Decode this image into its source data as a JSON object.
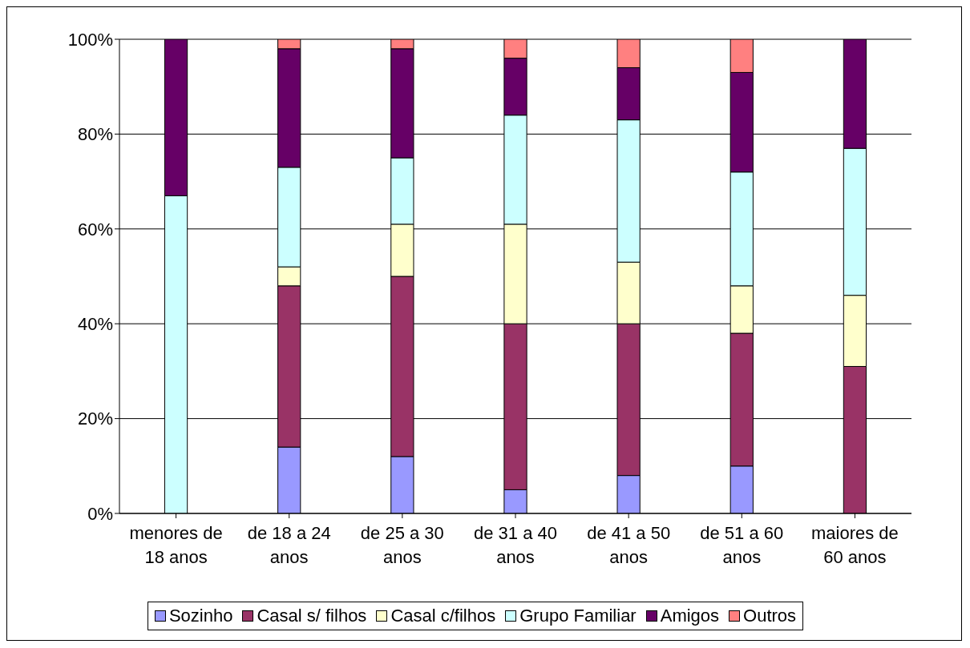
{
  "chart_data": {
    "type": "bar",
    "stacked": true,
    "categories": [
      "menores de 18 anos",
      "de 18 a 24 anos",
      "de 25 a 30 anos",
      "de 31 a 40 anos",
      "de 41 a 50 anos",
      "de 51 a 60 anos",
      "maiores de 60 anos"
    ],
    "series": [
      {
        "name": "Sozinho",
        "color": "#9999ff",
        "values": [
          0,
          14,
          12,
          5,
          8,
          10,
          0
        ]
      },
      {
        "name": "Casal s/ filhos",
        "color": "#993366",
        "values": [
          0,
          34,
          38,
          35,
          32,
          28,
          31
        ]
      },
      {
        "name": "Casal c/filhos",
        "color": "#ffffcc",
        "values": [
          0,
          4,
          11,
          21,
          13,
          10,
          15
        ]
      },
      {
        "name": "Grupo Familiar",
        "color": "#ccffff",
        "values": [
          67,
          21,
          14,
          23,
          30,
          24,
          31
        ]
      },
      {
        "name": "Amigos",
        "color": "#660066",
        "values": [
          33,
          25,
          23,
          12,
          11,
          21,
          23
        ]
      },
      {
        "name": "Outros",
        "color": "#ff8080",
        "values": [
          0,
          2,
          2,
          4,
          6,
          7,
          0
        ]
      }
    ],
    "ylim": [
      0,
      100
    ],
    "yticks": [
      {
        "value": 0,
        "label": "0%"
      },
      {
        "value": 20,
        "label": "20%"
      },
      {
        "value": 40,
        "label": "40%"
      },
      {
        "value": 60,
        "label": "60%"
      },
      {
        "value": 80,
        "label": "80%"
      },
      {
        "value": 100,
        "label": "100%"
      }
    ],
    "grid": "y",
    "legend": "bottom"
  }
}
